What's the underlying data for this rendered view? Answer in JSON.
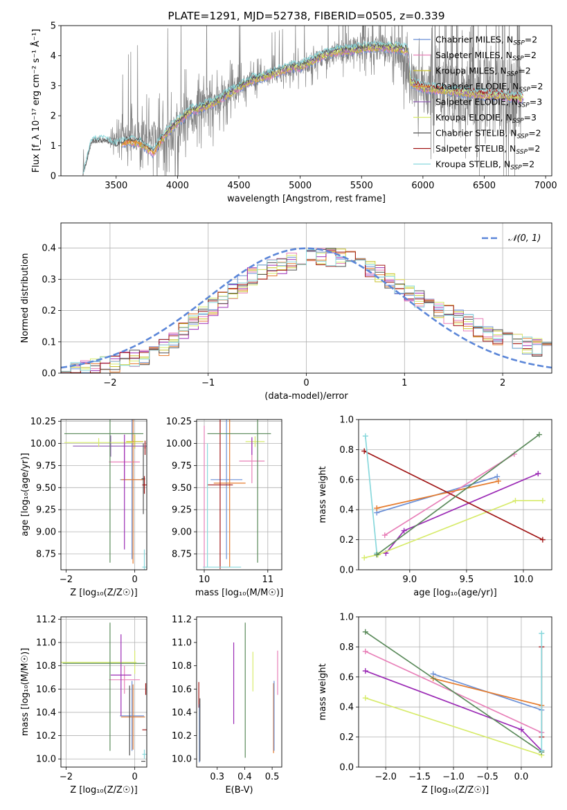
{
  "colors": [
    "#6A8FD6",
    "#E87FB8",
    "#C9C22A",
    "#E57A2B",
    "#8E5BB4",
    "#D7EB6A",
    "#505050",
    "#A01515",
    "#88D8DC",
    "#5A8A5A",
    "#9B2AB5",
    "#F07FB0"
  ],
  "chart_data": [
    {
      "id": "spectrum",
      "type": "line",
      "title": "PLATE=1291, MJD=52738, FIBERID=0505, z=0.339",
      "xlabel": "wavelength [Angstrom, rest frame]",
      "ylabel": "Flux [f_λ 10⁻¹⁷ erg cm⁻² s⁻¹ Å⁻¹]",
      "xlim": [
        3050,
        7050
      ],
      "ylim": [
        0,
        5
      ],
      "xticks": [
        "3500",
        "4000",
        "4500",
        "5000",
        "5500",
        "6000",
        "6500",
        "7000"
      ],
      "yticks": [
        "0",
        "1",
        "2",
        "3",
        "4",
        "5"
      ],
      "data_curve": {
        "name": "data",
        "color": "#808080",
        "x": [
          3230,
          3300,
          3400,
          3500,
          3600,
          3700,
          3800,
          3900,
          4000,
          4100,
          4200,
          4300,
          4400,
          4500,
          4600,
          4700,
          4800,
          4900,
          5000,
          5100,
          5200,
          5300,
          5400,
          5500,
          5600,
          5700,
          5800,
          5900,
          6000,
          6100,
          6200,
          6300,
          6400,
          6500,
          6600,
          6700,
          6800
        ],
        "y": [
          0.0,
          1.1,
          1.15,
          1.2,
          1.25,
          1.3,
          1.35,
          1.3,
          1.5,
          2.0,
          2.3,
          2.45,
          2.7,
          2.95,
          3.2,
          3.3,
          3.4,
          3.55,
          3.6,
          3.8,
          4.0,
          4.1,
          4.15,
          4.2,
          4.3,
          4.3,
          4.2,
          3.0,
          2.9,
          2.85,
          2.75,
          2.7,
          2.7,
          2.65,
          2.65,
          2.6,
          2.6
        ],
        "noise": [
          0.05,
          0.05,
          0.05,
          0.4,
          0.8,
          0.9,
          0.9,
          1.0,
          1.1,
          1.2,
          1.1,
          0.9,
          0.8,
          0.6,
          0.5,
          0.4,
          0.4,
          0.4,
          0.5,
          0.5,
          0.5,
          0.6,
          0.7,
          0.8,
          0.8,
          0.9,
          1.0,
          1.2,
          1.4,
          1.6,
          1.8,
          1.9,
          2.0,
          2.1,
          2.2,
          2.2,
          2.3
        ]
      },
      "series": [
        {
          "name": "Chabrier MILES, N_SSP=2",
          "color": "#6A8FD6"
        },
        {
          "name": "Salpeter MILES, N_SSP=2",
          "color": "#E87FB8"
        },
        {
          "name": "Kroupa MILES, N_SSP=2",
          "color": "#C9C22A"
        },
        {
          "name": "Chabrier ELODIE, N_SSP=2",
          "color": "#E57A2B"
        },
        {
          "name": "Salpeter ELODIE, N_SSP=3",
          "color": "#8E5BB4"
        },
        {
          "name": "Kroupa ELODIE, N_SSP=3",
          "color": "#D7EB6A"
        },
        {
          "name": "Chabrier STELIB, N_SSP=2",
          "color": "#505050"
        },
        {
          "name": "Salpeter STELIB, N_SSP=2",
          "color": "#A01515"
        },
        {
          "name": "Kroupa STELIB, N_SSP=2",
          "color": "#88D8DC"
        }
      ],
      "model_ranges": [
        [
          3550,
          6820
        ],
        [
          3550,
          6820
        ],
        [
          3540,
          6820
        ],
        [
          3550,
          3900
        ],
        [
          3900,
          6820
        ],
        [
          3900,
          6820
        ],
        [
          3230,
          5880
        ],
        [
          5880,
          6820
        ],
        [
          3230,
          6820
        ]
      ],
      "model_curve": {
        "x": [
          3230,
          3300,
          3400,
          3500,
          3600,
          3700,
          3800,
          3900,
          4000,
          4100,
          4200,
          4300,
          4400,
          4500,
          4600,
          4700,
          4800,
          4900,
          5000,
          5100,
          5200,
          5300,
          5400,
          5500,
          5600,
          5700,
          5800,
          5880,
          5900,
          6000,
          6100,
          6200,
          6300,
          6400,
          6500,
          6600,
          6700,
          6820
        ],
        "y": [
          0.0,
          1.12,
          1.15,
          1.0,
          1.2,
          1.1,
          0.8,
          1.4,
          1.8,
          2.15,
          2.3,
          2.45,
          2.7,
          2.95,
          3.2,
          3.3,
          3.45,
          3.6,
          3.65,
          3.85,
          4.05,
          4.15,
          4.2,
          4.25,
          4.3,
          4.3,
          4.25,
          4.2,
          3.1,
          2.95,
          2.9,
          2.85,
          2.8,
          2.75,
          2.7,
          2.7,
          2.65,
          2.6
        ]
      },
      "legend_position": "upper right"
    },
    {
      "id": "residuals",
      "type": "histogram",
      "xlabel": "(data-model)/error",
      "ylabel": "Normed distribution",
      "xlim": [
        -2.5,
        2.5
      ],
      "ylim": [
        0,
        0.48
      ],
      "xticks": [
        "−2",
        "−1",
        "0",
        "1",
        "2"
      ],
      "yticks": [
        "0.0",
        "0.1",
        "0.2",
        "0.3",
        "0.4"
      ],
      "bin_width": 0.1,
      "reference": {
        "name": "𝒩(0, 1)",
        "color": "#5B86D8",
        "mean": 0,
        "sigma": 1
      },
      "envelope": {
        "x": [
          -2.5,
          -2.0,
          -1.5,
          -1.0,
          -0.5,
          0.0,
          0.5,
          1.0,
          1.5,
          2.0,
          2.5
        ],
        "y": [
          0.01,
          0.025,
          0.07,
          0.2,
          0.32,
          0.37,
          0.37,
          0.26,
          0.18,
          0.11,
          0.07
        ]
      },
      "series_colors": [
        "#6A8FD6",
        "#E87FB8",
        "#C9C22A",
        "#E57A2B",
        "#9B2AB5",
        "#D7EB6A",
        "#505050",
        "#A01515",
        "#88D8DC"
      ],
      "legend_position": "upper right",
      "grid": true
    },
    {
      "id": "age-vs-Z",
      "type": "errorbar",
      "xlabel": "Z [log₁₀(Z/Z☉)]",
      "ylabel": "age  [log₁₀(age/yr)]",
      "xlim": [
        -2.15,
        0.35
      ],
      "ylim": [
        8.57,
        10.27
      ],
      "xticks": [
        "−2",
        "0"
      ],
      "yticks": [
        "8.75",
        "9.00",
        "9.25",
        "9.50",
        "9.75",
        "10.00",
        "10.25"
      ],
      "points": [
        {
          "x": -0.08,
          "y": 9.59,
          "xerr": 0.35,
          "yerr": 0.9,
          "color": "#6A8FD6"
        },
        {
          "x": -0.3,
          "y": 9.79,
          "xerr": 0.45,
          "yerr": 0.2,
          "color": "#E87FB8"
        },
        {
          "x": 0.0,
          "y": 10.02,
          "xerr": 0.25,
          "yerr": 0.08,
          "color": "#C9C22A"
        },
        {
          "x": -0.05,
          "y": 9.59,
          "xerr": 0.35,
          "yerr": 0.95,
          "color": "#E57A2B"
        },
        {
          "x": -0.7,
          "y": 9.97,
          "xerr": 1.1,
          "yerr": 0.12,
          "color": "#8E5BB4"
        },
        {
          "x": -1.05,
          "y": 10.01,
          "xerr": 1.0,
          "yerr": 0.05,
          "color": "#D7EB6A"
        },
        {
          "x": 0.25,
          "y": 9.6,
          "xerr": 0.05,
          "yerr": 0.4,
          "color": "#505050"
        },
        {
          "x": 0.28,
          "y": 9.53,
          "xerr": 0.06,
          "yerr": 0.1,
          "color": "#A01515"
        },
        {
          "x": 0.28,
          "y": 8.6,
          "xerr": 0.06,
          "yerr": 0.2,
          "color": "#88D8DC"
        },
        {
          "x": -0.9,
          "y": 10.11,
          "xerr": 1.15,
          "yerr": 0.0,
          "color": "#5A8A5A"
        },
        {
          "x": -0.72,
          "y": 9.5,
          "xerr": 0.0,
          "yerr": 0.85,
          "color": "#5A8A5A"
        },
        {
          "x": -0.3,
          "y": 9.45,
          "xerr": 0.0,
          "yerr": 0.65,
          "color": "#9B2AB5"
        },
        {
          "x": 0.3,
          "y": 9.95,
          "xerr": 0.02,
          "yerr": 0.08,
          "color": "#A01515"
        }
      ],
      "grid": true
    },
    {
      "id": "age-vs-mass",
      "type": "errorbar",
      "xlabel": "mass [log₁₀(M/M☉)]",
      "ylabel": "",
      "xlim": [
        9.88,
        11.22
      ],
      "ylim": [
        8.57,
        10.27
      ],
      "xticks": [
        "10",
        "11"
      ],
      "yticks": [
        "8.75",
        "9.00",
        "9.25",
        "9.50",
        "9.75",
        "10.00",
        "10.25"
      ],
      "points": [
        {
          "x": 10.35,
          "y": 9.59,
          "xerr": 0.25,
          "yerr": 0.9,
          "color": "#6A8FD6"
        },
        {
          "x": 10.75,
          "y": 9.8,
          "xerr": 0.2,
          "yerr": 0.25,
          "color": "#E87FB8"
        },
        {
          "x": 10.8,
          "y": 10.02,
          "xerr": 0.15,
          "yerr": 0.06,
          "color": "#D7EB6A"
        },
        {
          "x": 10.4,
          "y": 9.55,
          "xerr": 0.25,
          "yerr": 0.95,
          "color": "#E57A2B"
        },
        {
          "x": 10.75,
          "y": 9.97,
          "xerr": 0.0,
          "yerr": 0.1,
          "color": "#9B2AB5"
        },
        {
          "x": 10.25,
          "y": 9.53,
          "xerr": 0.2,
          "yerr": 0.95,
          "color": "#A01515"
        },
        {
          "x": 10.28,
          "y": 8.6,
          "xerr": 0.3,
          "yerr": 0.0,
          "color": "#88D8DC"
        },
        {
          "x": 10.05,
          "y": 9.3,
          "xerr": 0.0,
          "yerr": 0.7,
          "color": "#88D8DC"
        },
        {
          "x": 10.55,
          "y": 10.11,
          "xerr": 0.5,
          "yerr": 0.0,
          "color": "#5A8A5A"
        },
        {
          "x": 10.84,
          "y": 9.5,
          "xerr": 0.0,
          "yerr": 0.85,
          "color": "#5A8A5A"
        },
        {
          "x": 10.0,
          "y": 9.4,
          "xerr": 0.0,
          "yerr": 0.8,
          "color": "#E87FB8"
        }
      ],
      "grid": true
    },
    {
      "id": "mass-weight-vs-age",
      "type": "line",
      "xlabel": "age  [log₁₀(age/yr)]",
      "ylabel": "mass weight",
      "xlim": [
        8.55,
        10.25
      ],
      "ylim": [
        0,
        1
      ],
      "xticks": [
        "9.0",
        "9.5",
        "10.0"
      ],
      "yticks": [
        "0.0",
        "0.2",
        "0.4",
        "0.6",
        "0.8",
        "1.0"
      ],
      "series": [
        {
          "color": "#6A8FD6",
          "x": [
            8.71,
            9.77
          ],
          "y": [
            0.38,
            0.62
          ]
        },
        {
          "color": "#E87FB8",
          "x": [
            8.78,
            9.92
          ],
          "y": [
            0.23,
            0.77
          ]
        },
        {
          "color": "#E57A2B",
          "x": [
            8.71,
            9.78
          ],
          "y": [
            0.41,
            0.59
          ]
        },
        {
          "color": "#9B2AB5",
          "x": [
            8.79,
            8.95,
            10.13
          ],
          "y": [
            0.11,
            0.26,
            0.64
          ]
        },
        {
          "color": "#D7EB6A",
          "x": [
            8.6,
            8.72,
            9.93,
            10.17
          ],
          "y": [
            0.08,
            0.1,
            0.46,
            0.46
          ]
        },
        {
          "color": "#A01515",
          "x": [
            8.6,
            10.17
          ],
          "y": [
            0.79,
            0.2
          ]
        },
        {
          "color": "#88D8DC",
          "x": [
            8.61,
            8.71
          ],
          "y": [
            0.89,
            0.11
          ]
        },
        {
          "color": "#5A8A5A",
          "x": [
            8.71,
            10.14
          ],
          "y": [
            0.1,
            0.9
          ]
        }
      ],
      "grid": true
    },
    {
      "id": "mass-vs-Z",
      "type": "errorbar",
      "xlabel": "Z [log₁₀(Z/Z☉)]",
      "ylabel": "mass [log₁₀(M/M☉)]",
      "xlim": [
        -2.15,
        0.35
      ],
      "ylim": [
        9.93,
        11.22
      ],
      "xticks": [
        "−2",
        "0"
      ],
      "yticks": [
        "10.0",
        "10.2",
        "10.4",
        "10.6",
        "10.8",
        "11.0",
        "11.2"
      ],
      "points": [
        {
          "x": -0.08,
          "y": 10.37,
          "xerr": 0.35,
          "yerr": 0.3,
          "color": "#6A8FD6"
        },
        {
          "x": -0.3,
          "y": 10.68,
          "xerr": 0.45,
          "yerr": 0.12,
          "color": "#E87FB8"
        },
        {
          "x": -1.05,
          "y": 10.83,
          "xerr": 1.1,
          "yerr": 0.0,
          "color": "#D7EB6A"
        },
        {
          "x": -0.05,
          "y": 10.36,
          "xerr": 0.35,
          "yerr": 0.28,
          "color": "#E57A2B"
        },
        {
          "x": -0.4,
          "y": 10.72,
          "xerr": 0.3,
          "yerr": 0.35,
          "color": "#9B2AB5"
        },
        {
          "x": 0.0,
          "y": 10.83,
          "xerr": 0.0,
          "yerr": 0.1,
          "color": "#D7EB6A"
        },
        {
          "x": 0.25,
          "y": 9.98,
          "xerr": 0.06,
          "yerr": 0.0,
          "color": "#505050"
        },
        {
          "x": 0.28,
          "y": 10.25,
          "xerr": 0.06,
          "yerr": 0.0,
          "color": "#A01515"
        },
        {
          "x": 0.32,
          "y": 10.6,
          "xerr": 0.0,
          "yerr": 0.05,
          "color": "#A01515"
        },
        {
          "x": 0.28,
          "y": 10.04,
          "xerr": 0.06,
          "yerr": 0.04,
          "color": "#88D8DC"
        },
        {
          "x": -0.9,
          "y": 10.82,
          "xerr": 1.2,
          "yerr": 0.0,
          "color": "#5A8A5A"
        },
        {
          "x": -0.72,
          "y": 10.62,
          "xerr": 0.0,
          "yerr": 0.55,
          "color": "#5A8A5A"
        },
        {
          "x": -0.15,
          "y": 10.33,
          "xerr": 0.0,
          "yerr": 0.3,
          "color": "#505050"
        }
      ],
      "grid": true
    },
    {
      "id": "mass-vs-EBV",
      "type": "errorbar",
      "xlabel": "E(B-V)",
      "ylabel": "",
      "xlim": [
        0.225,
        0.535
      ],
      "ylim": [
        9.93,
        11.22
      ],
      "xticks": [
        "0.3",
        "0.4",
        "0.5"
      ],
      "yticks": [
        "10.0",
        "10.2",
        "10.4",
        "10.6",
        "10.8",
        "11.0",
        "11.2"
      ],
      "points": [
        {
          "x": 0.233,
          "y": 10.55,
          "xerr": 0,
          "yerr": 0.11,
          "color": "#A01515"
        },
        {
          "x": 0.235,
          "y": 10.22,
          "xerr": 0,
          "yerr": 0.25,
          "color": "#6A8FD6"
        },
        {
          "x": 0.237,
          "y": 10.25,
          "xerr": 0,
          "yerr": 0.27,
          "color": "#505050"
        },
        {
          "x": 0.36,
          "y": 10.65,
          "xerr": 0,
          "yerr": 0.35,
          "color": "#9B2AB5"
        },
        {
          "x": 0.402,
          "y": 10.59,
          "xerr": 0,
          "yerr": 0.58,
          "color": "#5A8A5A"
        },
        {
          "x": 0.43,
          "y": 10.75,
          "xerr": 0,
          "yerr": 0.17,
          "color": "#D7EB6A"
        },
        {
          "x": 0.505,
          "y": 10.35,
          "xerr": 0,
          "yerr": 0.3,
          "color": "#E57A2B"
        },
        {
          "x": 0.507,
          "y": 10.37,
          "xerr": 0,
          "yerr": 0.3,
          "color": "#6A8FD6"
        },
        {
          "x": 0.52,
          "y": 10.74,
          "xerr": 0,
          "yerr": 0.19,
          "color": "#E87FB8"
        }
      ],
      "grid": false
    },
    {
      "id": "mass-weight-vs-Z",
      "type": "line",
      "xlabel": "Z [log₁₀(Z/Z☉)]",
      "ylabel": "mass weight",
      "xlim": [
        -2.4,
        0.45
      ],
      "ylim": [
        0,
        1
      ],
      "xticks": [
        "−2.0",
        "−1.5",
        "−1.0",
        "−0.5",
        "0.0"
      ],
      "yticks": [
        "0.0",
        "0.2",
        "0.4",
        "0.6",
        "0.8",
        "1.0"
      ],
      "series": [
        {
          "color": "#6A8FD6",
          "x": [
            -1.3,
            0.3
          ],
          "y": [
            0.62,
            0.38
          ]
        },
        {
          "color": "#E87FB8",
          "x": [
            -2.3,
            0.3
          ],
          "y": [
            0.77,
            0.23
          ]
        },
        {
          "color": "#E57A2B",
          "x": [
            -1.3,
            0.3
          ],
          "y": [
            0.59,
            0.41
          ]
        },
        {
          "color": "#9B2AB5",
          "x": [
            -2.3,
            0.0,
            0.3
          ],
          "y": [
            0.64,
            0.25,
            0.11
          ]
        },
        {
          "color": "#D7EB6A",
          "x": [
            -2.3,
            0.3
          ],
          "y": [
            0.46,
            0.08
          ]
        },
        {
          "color": "#5A8A5A",
          "x": [
            -2.3,
            0.3
          ],
          "y": [
            0.9,
            0.1
          ]
        },
        {
          "color": "#A01515",
          "x": [
            0.3,
            0.3
          ],
          "y": [
            0.8,
            0.2
          ]
        },
        {
          "color": "#88D8DC",
          "x": [
            0.3,
            0.3
          ],
          "y": [
            0.89,
            0.11
          ]
        }
      ],
      "grid": true
    }
  ]
}
